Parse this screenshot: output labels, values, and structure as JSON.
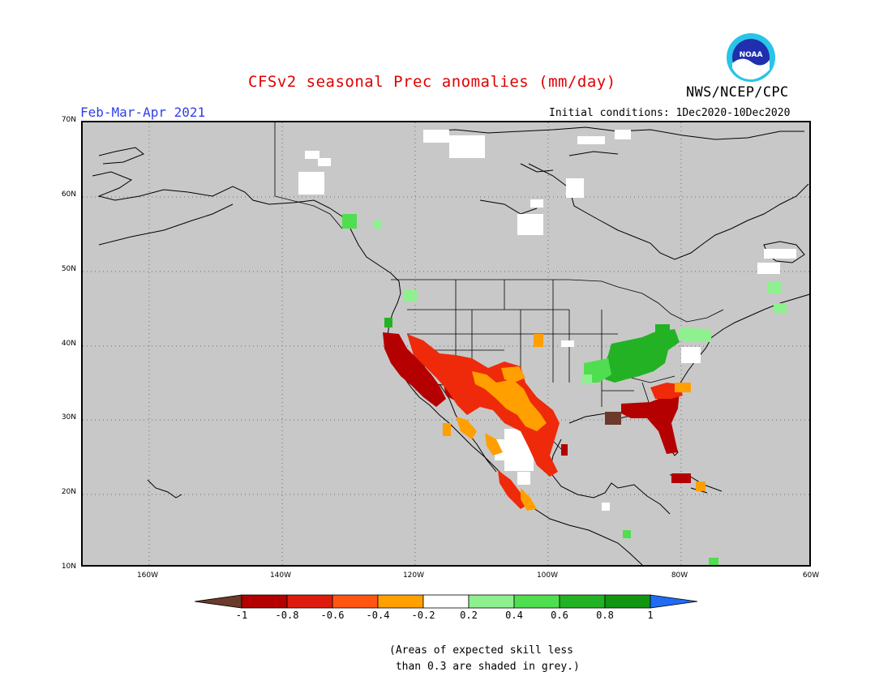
{
  "header": {
    "title": "CFSv2 seasonal Prec anomalies (mm/day)",
    "agency": "NWS/NCEP/CPC",
    "period": "Feb-Mar-Apr 2021",
    "initial_conditions": "Initial conditions: 1Dec2020-10Dec2020",
    "logo_text": "NOAA"
  },
  "map": {
    "lat_labels": [
      "70N",
      "60N",
      "50N",
      "40N",
      "30N",
      "20N",
      "10N"
    ],
    "lon_labels": [
      "160W",
      "140W",
      "120W",
      "100W",
      "80W",
      "60W"
    ],
    "background_color": "#c8c8c8",
    "anomaly_regions": [
      {
        "region": "California / Southwest US",
        "category": "-1 to -0.4",
        "color": "#b40000"
      },
      {
        "region": "Southern Rockies / Texas",
        "category": "-0.6 to -0.2",
        "color": "#ff9900"
      },
      {
        "region": "Northern Mexico",
        "category": "-0.2 to 0.2",
        "color": "#ffffff"
      },
      {
        "region": "Gulf Coast / Florida / Georgia",
        "category": "-1 to -0.6",
        "color": "#b40000"
      },
      {
        "region": "Ohio Valley",
        "category": "0.6 to 1",
        "color": "#22aa22"
      },
      {
        "region": "Mid-Atlantic",
        "category": "0.2 to 0.4",
        "color": "#88ee88"
      }
    ]
  },
  "colorbar": {
    "labels": [
      "-1",
      "-0.8",
      "-0.6",
      "-0.4",
      "-0.2",
      "0.2",
      "0.4",
      "0.6",
      "0.8",
      "1"
    ],
    "colors": [
      "#6b3a2a",
      "#b40000",
      "#dd1c0e",
      "#ff5511",
      "#ff9f00",
      "#ffffff",
      "#8ff08f",
      "#4fde4f",
      "#23b223",
      "#129612",
      "#1f6cf2"
    ]
  },
  "footnote": "(Areas of expected skill less\n than 0.3 are shaded in grey.)"
}
